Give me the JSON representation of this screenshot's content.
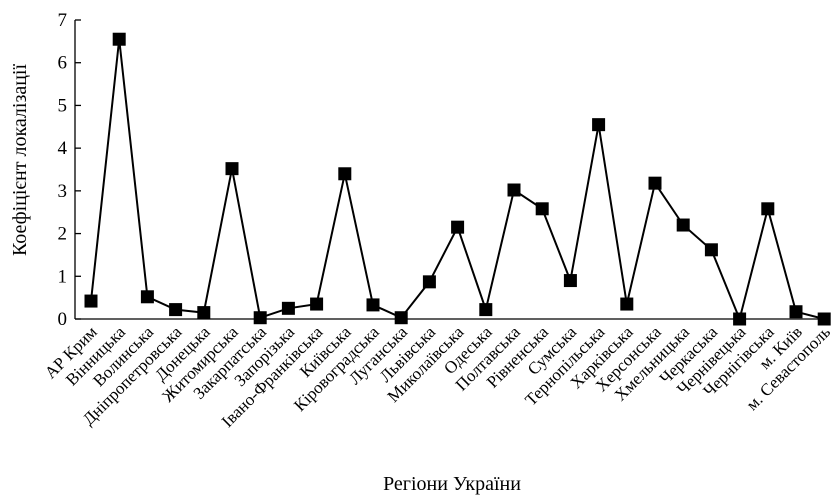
{
  "chart_data": {
    "type": "line",
    "xlabel": "Регіони України",
    "ylabel": "Коефіцієнт локалізації",
    "ylim": [
      0,
      7
    ],
    "yticks": [
      0,
      1,
      2,
      3,
      4,
      5,
      6,
      7
    ],
    "grid": false,
    "marker": "square",
    "line_color": "#000000",
    "categories": [
      "АР Крим",
      "Вінницька",
      "Волинська",
      "Дніпропетровська",
      "Донецька",
      "Житомирська",
      "Закарпатська",
      "Запорізька",
      "Івано-Франківська",
      "Київська",
      "Кіровоградська",
      "Луганська",
      "Львівська",
      "Миколаївська",
      "Одеська",
      "Полтавська",
      "Рівненська",
      "Сумська",
      "Тернопільська",
      "Харківська",
      "Херсонська",
      "Хмельницька",
      "Черкаська",
      "Чернівецька",
      "Чернігівська",
      "м. Київ",
      "м. Севастополь"
    ],
    "values": [
      0.42,
      6.55,
      0.52,
      0.22,
      0.15,
      3.52,
      0.03,
      0.25,
      0.35,
      3.4,
      0.33,
      0.03,
      0.87,
      2.15,
      0.22,
      3.02,
      2.58,
      0.9,
      4.55,
      0.35,
      3.18,
      2.2,
      1.62,
      0.0,
      2.58,
      0.17,
      0.0
    ]
  }
}
